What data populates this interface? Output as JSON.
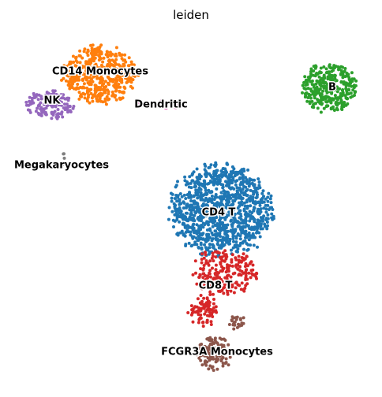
{
  "chart_data": {
    "type": "scatter",
    "title": "leiden",
    "xlabel": "",
    "ylabel": "",
    "grid": false,
    "axes_visible": false,
    "legend": "on data",
    "clusters": [
      {
        "name": "CD4 T",
        "color": "#1f77b4",
        "center": [
          280,
          267
        ],
        "count": 1100
      },
      {
        "name": "CD14 Monocytes",
        "color": "#ff7f0e",
        "center": [
          126,
          95
        ],
        "count": 480
      },
      {
        "name": "B",
        "color": "#2ca02c",
        "center": [
          417,
          111
        ],
        "count": 340
      },
      {
        "name": "CD8 T",
        "color": "#d62728",
        "center": [
          274,
          362
        ],
        "count": 300
      },
      {
        "name": "NK",
        "color": "#9467bd",
        "center": [
          64,
          132
        ],
        "count": 150
      },
      {
        "name": "FCGR3A Monocytes",
        "color": "#8c564b",
        "center": [
          276,
          445
        ],
        "count": 140
      },
      {
        "name": "Dendritic",
        "color": "#e377c2",
        "center": [
          203,
          132
        ],
        "count": 16
      },
      {
        "name": "Megakaryocytes",
        "color": "#7f7f7f",
        "center": [
          79,
          205
        ],
        "count": 5
      }
    ]
  }
}
